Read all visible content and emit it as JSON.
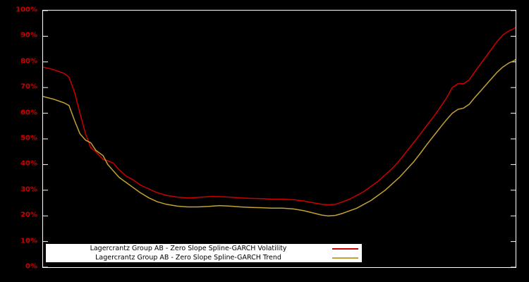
{
  "page": {
    "background": "#000000"
  },
  "axis": {
    "frame_color": "#ffffff",
    "label_color": "#cc0000"
  },
  "chart_data": {
    "type": "line",
    "title": "",
    "xlabel": "",
    "ylabel": "",
    "ylim": [
      0,
      100
    ],
    "yticks": [
      0,
      10,
      20,
      30,
      40,
      50,
      60,
      70,
      80,
      90,
      100
    ],
    "ytick_suffix": "%",
    "grid": false,
    "legend_position": "bottom-center",
    "x": [
      0,
      2.2,
      4.5,
      5.5,
      6.7,
      7.8,
      9.0,
      10.1,
      11.2,
      12.7,
      13.7,
      14.9,
      16.1,
      17.6,
      19.1,
      20.6,
      22.4,
      24.2,
      26.1,
      28.4,
      30.6,
      32.8,
      35.1,
      37.3,
      39.6,
      41.8,
      44.0,
      46.3,
      48.5,
      50.7,
      53.0,
      55.2,
      57.5,
      59.0,
      60.4,
      61.9,
      63.4,
      64.9,
      66.4,
      67.9,
      69.4,
      70.9,
      72.4,
      73.9,
      75.4,
      76.9,
      78.4,
      79.9,
      81.3,
      82.8,
      84.3,
      85.4,
      86.6,
      87.8,
      89.0,
      90.2,
      91.3,
      92.5,
      93.7,
      94.9,
      96.1,
      97.3,
      98.5,
      99.7,
      100
    ],
    "series": [
      {
        "name": "Lagercrantz Group AB - Zero Slope Spline-GARCH Volatility",
        "color": "#cc0000",
        "values": [
          78,
          77,
          75.5,
          74,
          68,
          60,
          52,
          46.5,
          45,
          42,
          41.5,
          40.5,
          38,
          35.5,
          34,
          32,
          30.5,
          29,
          28,
          27.3,
          27,
          27.2,
          27.5,
          27.5,
          27.3,
          27,
          26.8,
          26.7,
          26.5,
          26.5,
          26.3,
          25.8,
          25,
          24.5,
          24.3,
          24.5,
          25.5,
          26.5,
          28,
          29.5,
          31.5,
          33.5,
          36,
          38.5,
          41.5,
          45,
          48.5,
          52,
          55.5,
          59,
          63,
          66,
          70,
          71.5,
          71.5,
          73,
          76,
          79,
          82,
          85,
          88,
          90.5,
          92,
          93,
          93.5
        ]
      },
      {
        "name": "Lagercrantz Group AB - Zero Slope Spline-GARCH Trend",
        "color": "#c2a231",
        "values": [
          66.5,
          65.5,
          64,
          63,
          57,
          52,
          49.5,
          48.5,
          45.5,
          43.5,
          40,
          37.5,
          35,
          33,
          31,
          29,
          27,
          25.5,
          24.5,
          23.8,
          23.5,
          23.5,
          23.7,
          24,
          23.8,
          23.5,
          23.3,
          23.2,
          23,
          23,
          22.7,
          22,
          21,
          20.3,
          20,
          20.2,
          21,
          22,
          23,
          24.5,
          26,
          28,
          30,
          32.5,
          35,
          38,
          41,
          44.5,
          48,
          51.5,
          55,
          57.5,
          60,
          61.5,
          62,
          63.5,
          66,
          68.5,
          71,
          73.5,
          76,
          78,
          79.5,
          80.5,
          81
        ]
      }
    ]
  }
}
